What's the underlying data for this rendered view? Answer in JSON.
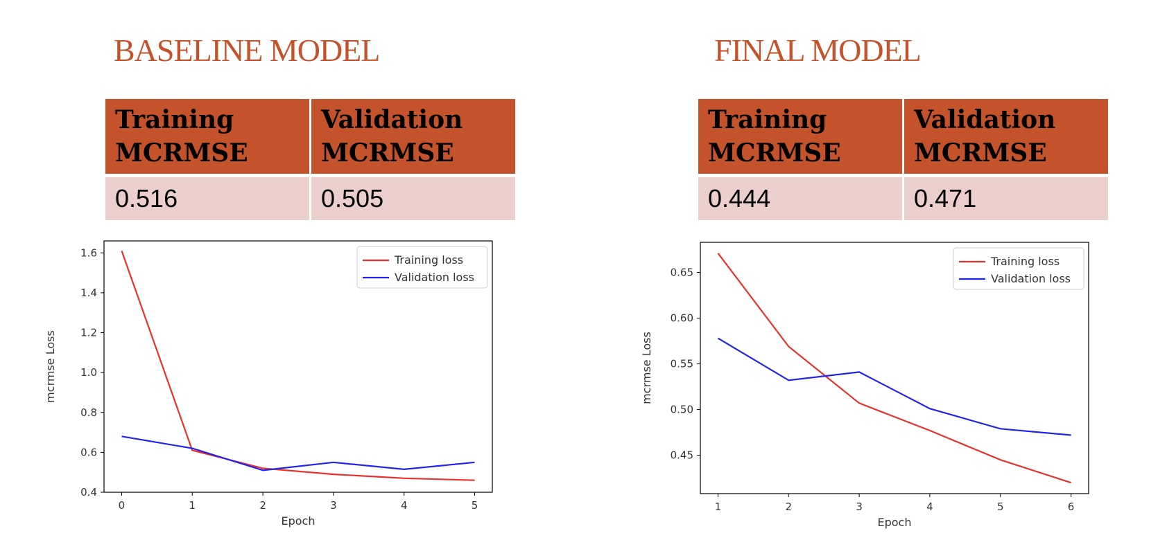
{
  "panels": [
    {
      "title": "BASELINE MODEL",
      "table": {
        "headers": [
          [
            "Training",
            "MCRMSE"
          ],
          [
            "Validation",
            "MCRMSE"
          ]
        ],
        "values": [
          "0.516",
          "0.505"
        ]
      }
    },
    {
      "title": "FINAL MODEL",
      "table": {
        "headers": [
          [
            "Training",
            "MCRMSE"
          ],
          [
            "Validation",
            "MCRMSE"
          ]
        ],
        "values": [
          "0.444",
          "0.471"
        ]
      }
    }
  ],
  "colors": {
    "accent": "#c4522a",
    "header_fill": "#c4522a",
    "cell_fill": "#ebcfcc",
    "training": "#e8312a",
    "validation": "#2222ee"
  },
  "chart_data": [
    {
      "type": "line",
      "title": "",
      "xlabel": "Epoch",
      "ylabel": "mcrmse Loss",
      "xlim": [
        -0.25,
        5.25
      ],
      "ylim": [
        0.4,
        1.66
      ],
      "xticks": [
        0,
        1,
        2,
        3,
        4,
        5
      ],
      "yticks": [
        0.4,
        0.6,
        0.8,
        1.0,
        1.2,
        1.4,
        1.6
      ],
      "ytick_labels": [
        "0.4",
        "0.6",
        "0.8",
        "1.0",
        "1.2",
        "1.4",
        "1.6"
      ],
      "legend": "top-right",
      "grid": false,
      "x": [
        0,
        1,
        2,
        3,
        4,
        5
      ],
      "series": [
        {
          "name": "Training loss",
          "color": "#e8312a",
          "values": [
            1.61,
            0.61,
            0.52,
            0.49,
            0.47,
            0.46
          ]
        },
        {
          "name": "Validation loss",
          "color": "#2222ee",
          "values": [
            0.68,
            0.62,
            0.51,
            0.55,
            0.515,
            0.55
          ]
        }
      ]
    },
    {
      "type": "line",
      "title": "",
      "xlabel": "Epoch",
      "ylabel": "mcrmse Loss",
      "xlim": [
        0.75,
        6.25
      ],
      "ylim": [
        0.408,
        0.683
      ],
      "xticks": [
        1,
        2,
        3,
        4,
        5,
        6
      ],
      "yticks": [
        0.45,
        0.5,
        0.55,
        0.6,
        0.65
      ],
      "ytick_labels": [
        "0.45",
        "0.50",
        "0.55",
        "0.60",
        "0.65"
      ],
      "legend": "top-right",
      "grid": false,
      "x": [
        1,
        2,
        3,
        4,
        5,
        6
      ],
      "series": [
        {
          "name": "Training loss",
          "color": "#e8312a",
          "values": [
            0.671,
            0.569,
            0.507,
            0.477,
            0.445,
            0.42
          ]
        },
        {
          "name": "Validation loss",
          "color": "#2222ee",
          "values": [
            0.578,
            0.532,
            0.541,
            0.501,
            0.479,
            0.472
          ]
        }
      ]
    }
  ]
}
